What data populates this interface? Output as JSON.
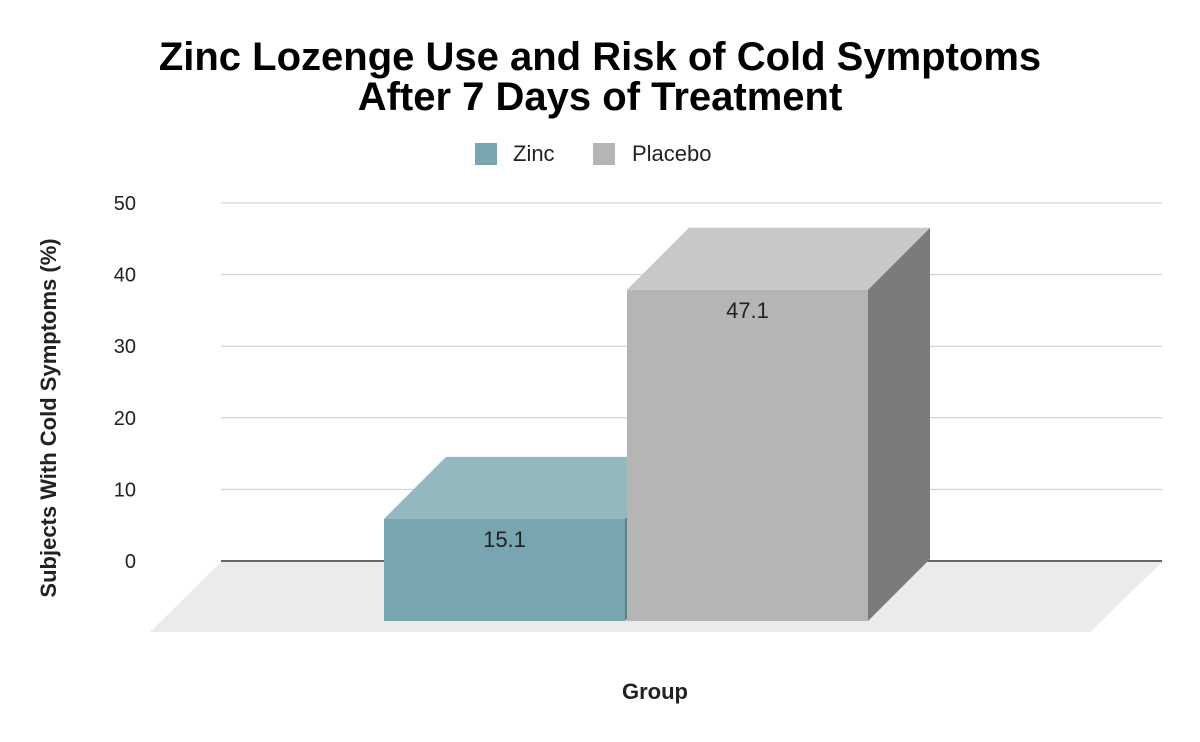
{
  "chart_data": {
    "type": "bar",
    "title_lines": [
      "Zinc Lozenge Use and Risk of Cold Symptoms",
      "After 7 Days of Treatment"
    ],
    "xlabel": "Group",
    "ylabel": "Subjects With Cold Symptoms (%)",
    "ylim": [
      0,
      50
    ],
    "yticks": [
      "0",
      "10",
      "20",
      "30",
      "40",
      "50"
    ],
    "grid": true,
    "legend_position": "top-center",
    "style_3d": true,
    "series": [
      {
        "name": "Zinc",
        "value": 15.1,
        "label": "15.1",
        "color": "#78a6b0",
        "top_color": "#93b8be",
        "side_color": "#5a8089"
      },
      {
        "name": "Placebo",
        "value": 47.1,
        "label": "47.1",
        "color": "#b5b5b5",
        "top_color": "#c8c8c8",
        "side_color": "#7a7a7a"
      }
    ]
  }
}
